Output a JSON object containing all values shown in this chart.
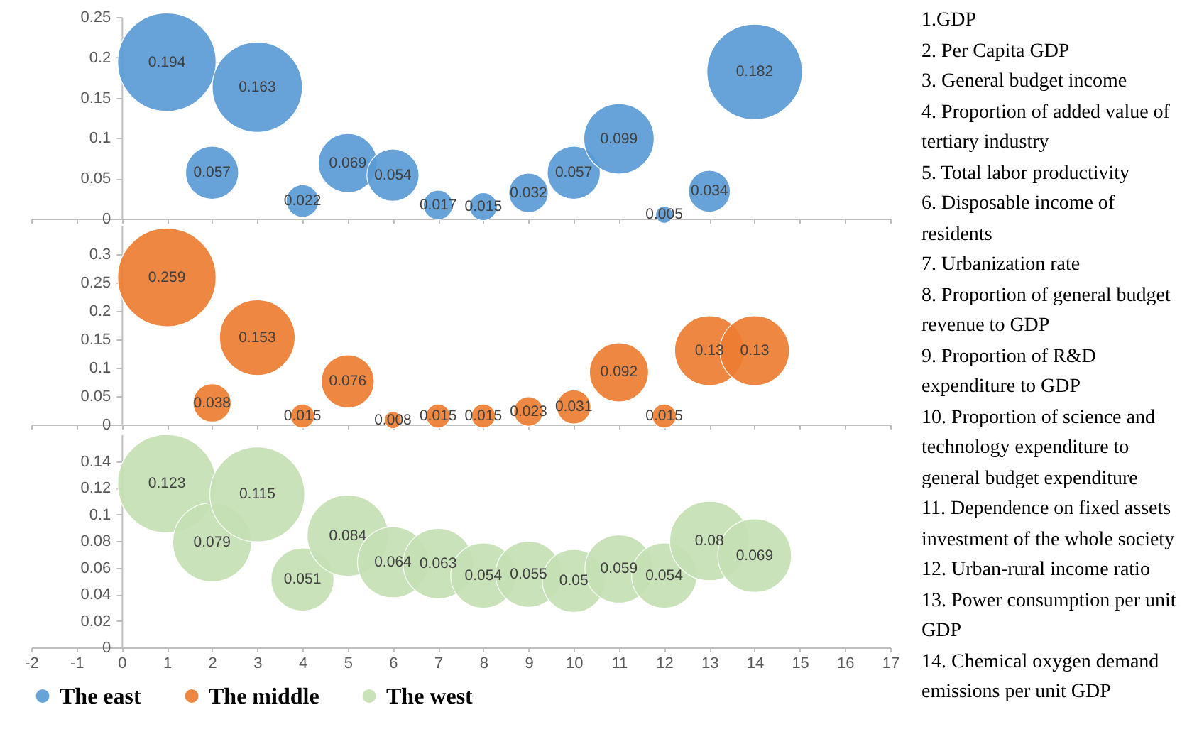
{
  "chart_data": [
    {
      "type": "bubble",
      "x": [
        1,
        2,
        3,
        4,
        5,
        6,
        7,
        8,
        9,
        10,
        11,
        12,
        13,
        14
      ],
      "xlim": [
        -2,
        17
      ],
      "xticks": [
        -2,
        -1,
        0,
        1,
        2,
        3,
        4,
        5,
        6,
        7,
        8,
        9,
        10,
        11,
        12,
        13,
        14,
        15,
        16,
        17
      ],
      "ylim": [
        0,
        0.25
      ],
      "yticks": [
        0,
        0.05,
        0.1,
        0.15,
        0.2,
        0.25
      ],
      "tick_labels": "y",
      "data_labels": true,
      "legend": "bottom",
      "series": [
        {
          "name": "The east",
          "color": "#5b9bd5",
          "values": [
            0.194,
            0.057,
            0.163,
            0.022,
            0.069,
            0.054,
            0.017,
            0.015,
            0.032,
            0.057,
            0.099,
            0.005,
            0.034,
            0.182
          ],
          "sizes": [
            1,
            0.29,
            0.84,
            0.11,
            0.36,
            0.28,
            0.09,
            0.08,
            0.16,
            0.29,
            0.51,
            0.03,
            0.18,
            0.94
          ]
        }
      ]
    },
    {
      "type": "bubble",
      "x": [
        1,
        2,
        3,
        4,
        5,
        6,
        7,
        8,
        9,
        10,
        11,
        12,
        13,
        14
      ],
      "xlim": [
        -2,
        17
      ],
      "xticks": [
        -2,
        -1,
        0,
        1,
        2,
        3,
        4,
        5,
        6,
        7,
        8,
        9,
        10,
        11,
        12,
        13,
        14,
        15,
        16,
        17
      ],
      "ylim": [
        0,
        0.35
      ],
      "yticks": [
        0,
        0.05,
        0.1,
        0.15,
        0.2,
        0.25,
        0.3
      ],
      "tick_labels": "y",
      "data_labels": true,
      "legend": "bottom",
      "series": [
        {
          "name": "The middle",
          "color": "#ed7d31",
          "values": [
            0.259,
            0.038,
            0.153,
            0.015,
            0.076,
            0.008,
            0.015,
            0.015,
            0.023,
            0.031,
            0.092,
            0.015,
            0.13,
            0.13
          ],
          "sizes": [
            1,
            0.15,
            0.59,
            0.06,
            0.29,
            0.03,
            0.06,
            0.06,
            0.09,
            0.12,
            0.36,
            0.06,
            0.5,
            0.5
          ]
        }
      ]
    },
    {
      "type": "bubble",
      "x": [
        1,
        2,
        3,
        4,
        5,
        6,
        7,
        8,
        9,
        10,
        11,
        12,
        13,
        14
      ],
      "xlim": [
        -2,
        17
      ],
      "xticks": [
        -2,
        -1,
        0,
        1,
        2,
        3,
        4,
        5,
        6,
        7,
        8,
        9,
        10,
        11,
        12,
        13,
        14,
        15,
        16,
        17
      ],
      "ylim": [
        0,
        0.16
      ],
      "yticks": [
        0,
        0.02,
        0.04,
        0.06,
        0.08,
        0.1,
        0.12,
        0.14
      ],
      "data_labels": true,
      "legend": "bottom",
      "series": [
        {
          "name": "The west",
          "color": "#c5e0b4",
          "values": [
            0.123,
            0.079,
            0.115,
            0.051,
            0.084,
            0.064,
            0.063,
            0.054,
            0.055,
            0.05,
            0.059,
            0.054,
            0.08,
            0.069
          ],
          "sizes": [
            1,
            0.64,
            0.93,
            0.41,
            0.68,
            0.52,
            0.51,
            0.44,
            0.45,
            0.41,
            0.48,
            0.44,
            0.65,
            0.56
          ]
        }
      ]
    },
    {
      "type": "other",
      "annotations": [
        "1.GDP",
        "2. Per Capita GDP",
        "3. General budget income",
        "4. Proportion of added value of tertiary industry",
        "5. Total labor productivity",
        "6. Disposable income of residents",
        "7. Urbanization rate",
        "8. Proportion of general budget revenue to GDP",
        "9. Proportion of R&D expenditure to GDP",
        "10. Proportion of science and technology expenditure to general budget expenditure",
        "11. Dependence on fixed assets investment of the whole society",
        "12. Urban-rural income ratio",
        "13. Power consumption per unit GDP",
        "14. Chemical oxygen demand emissions per unit GDP"
      ]
    }
  ]
}
